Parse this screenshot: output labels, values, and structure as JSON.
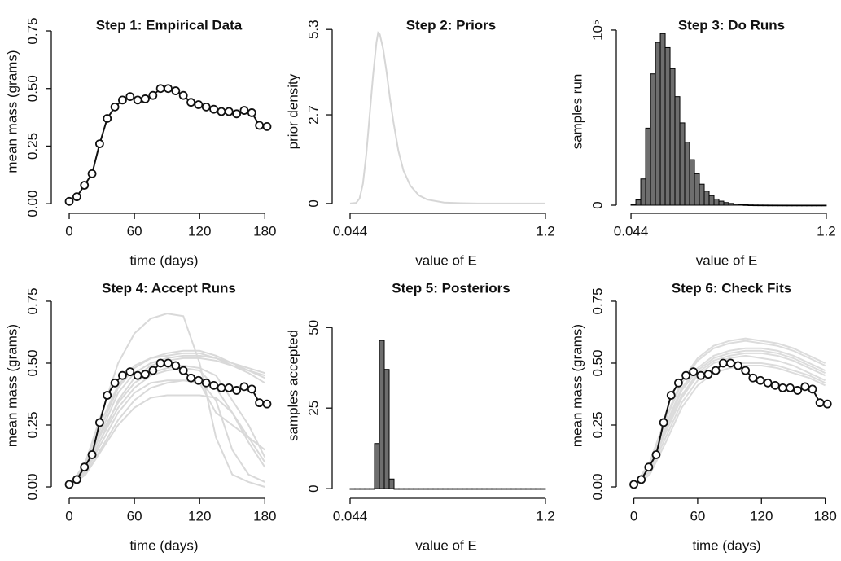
{
  "chart_data": [
    {
      "type": "line",
      "title": "Step 1: Empirical Data",
      "xlabel": "time (days)",
      "ylabel": "mean mass (grams)",
      "xlim": [
        -16.5,
        191
      ],
      "ylim": [
        -0.042,
        0.842
      ],
      "xticks": [
        0,
        60,
        120,
        180
      ],
      "yticks": [
        {
          "value": 0,
          "label": "0.00"
        },
        {
          "value": 0.25,
          "label": "0.25"
        },
        {
          "value": 0.5,
          "label": "0.50"
        },
        {
          "value": 0.75,
          "label": "0.75"
        }
      ],
      "series": [
        {
          "color": "#111111",
          "marker": "circle",
          "x": [
            0,
            7,
            14,
            21,
            28,
            35,
            42,
            49,
            56,
            63,
            70,
            77,
            84,
            91,
            98,
            105,
            112,
            119,
            126,
            133,
            140,
            147,
            154,
            161,
            168,
            175,
            182
          ],
          "values": [
            0.01,
            0.03,
            0.08,
            0.13,
            0.26,
            0.37,
            0.42,
            0.45,
            0.465,
            0.45,
            0.455,
            0.47,
            0.5,
            0.5,
            0.49,
            0.47,
            0.44,
            0.43,
            0.42,
            0.41,
            0.4,
            0.4,
            0.39,
            0.405,
            0.395,
            0.34,
            0.335
          ]
        }
      ]
    },
    {
      "type": "line",
      "title": "Step 2: Priors",
      "xlabel": "value of E",
      "ylabel": "prior density",
      "xlim": [
        -0.062,
        1.287
      ],
      "ylim": [
        -0.3,
        5.9
      ],
      "xticks": [
        0.044,
        1.2
      ],
      "yticks": [
        0,
        2.7,
        5.3
      ],
      "series": [
        {
          "color": "#d6d6d6",
          "x": [
            0.044,
            0.08,
            0.1,
            0.12,
            0.14,
            0.16,
            0.18,
            0.2,
            0.21,
            0.22,
            0.24,
            0.26,
            0.28,
            0.3,
            0.33,
            0.36,
            0.4,
            0.45,
            0.5,
            0.6,
            0.7,
            0.8,
            1.0,
            1.2
          ],
          "values": [
            0,
            0.02,
            0.15,
            0.6,
            1.5,
            2.7,
            3.9,
            4.9,
            5.2,
            5.15,
            4.7,
            4.0,
            3.2,
            2.5,
            1.6,
            1.0,
            0.55,
            0.25,
            0.12,
            0.03,
            0.01,
            0,
            0,
            0
          ]
        }
      ]
    },
    {
      "type": "histogram",
      "title": "Step 3: Do Runs",
      "xlabel": "value of E",
      "ylabel": "samples run",
      "xlim": [
        -0.043,
        1.263
      ],
      "ylim": [
        -4650,
        111600
      ],
      "xticks": [
        0.044,
        1.2
      ],
      "yticks": [
        0,
        {
          "value": 100000,
          "label": "10⁵"
        }
      ],
      "color": "#6e6e6e",
      "edgecolor": "#000000",
      "bins": [
        0.044,
        0.0729,
        0.1018,
        0.1307,
        0.1596,
        0.1885,
        0.2174,
        0.2463,
        0.2752,
        0.3041,
        0.333,
        0.3619,
        0.3908,
        0.4197,
        0.4486,
        0.4775,
        0.5064,
        0.5353,
        0.5642,
        0.5931,
        0.622,
        0.6509,
        0.6798,
        0.7087,
        0.7376,
        0.7665,
        0.7954,
        0.8243,
        0.8532,
        0.8821,
        0.911,
        0.9399,
        0.9688,
        0.9977,
        1.0266,
        1.0555,
        1.0844,
        1.1133,
        1.1422,
        1.1711,
        1.2
      ],
      "counts": [
        500,
        3000,
        15000,
        44000,
        75000,
        93000,
        98000,
        90000,
        78000,
        62000,
        47000,
        36000,
        26000,
        18000,
        12000,
        8000,
        5500,
        3500,
        2300,
        1500,
        1000,
        600,
        400,
        250,
        150,
        100,
        80,
        60,
        40,
        30,
        20,
        15,
        10,
        8,
        5,
        4,
        3,
        2,
        1,
        1
      ]
    },
    {
      "type": "line",
      "title": "Step 4: Accept Runs",
      "xlabel": "time (days)",
      "ylabel": "mean mass (grams)",
      "xlim": [
        -16.5,
        191
      ],
      "ylim": [
        -0.046,
        0.865
      ],
      "xticks": [
        0,
        60,
        120,
        180
      ],
      "yticks": [
        {
          "value": 0,
          "label": "0.00"
        },
        {
          "value": 0.25,
          "label": "0.25"
        },
        {
          "value": 0.5,
          "label": "0.50"
        },
        {
          "value": 0.75,
          "label": "0.75"
        }
      ],
      "series": [
        {
          "color": "#d9d9d9",
          "x": [
            0,
            15,
            30,
            45,
            60,
            75,
            90,
            105,
            120,
            135,
            150,
            165,
            180
          ],
          "values": [
            0,
            0.1,
            0.3,
            0.5,
            0.62,
            0.68,
            0.7,
            0.69,
            0.5,
            0.2,
            0.05,
            0.02,
            0
          ]
        },
        {
          "color": "#d9d9d9",
          "x": [
            0,
            15,
            30,
            45,
            60,
            75,
            90,
            105,
            120,
            135,
            150,
            165,
            180
          ],
          "values": [
            0,
            0.08,
            0.25,
            0.4,
            0.48,
            0.52,
            0.54,
            0.55,
            0.55,
            0.53,
            0.5,
            0.47,
            0.44
          ]
        },
        {
          "color": "#d9d9d9",
          "x": [
            0,
            15,
            30,
            45,
            60,
            75,
            90,
            105,
            120,
            135,
            150,
            165,
            180
          ],
          "values": [
            0,
            0.07,
            0.23,
            0.38,
            0.46,
            0.5,
            0.52,
            0.53,
            0.53,
            0.52,
            0.5,
            0.48,
            0.46
          ]
        },
        {
          "color": "#d9d9d9",
          "x": [
            0,
            15,
            30,
            45,
            60,
            75,
            90,
            105,
            120,
            135,
            150,
            165,
            180
          ],
          "values": [
            0,
            0.09,
            0.27,
            0.41,
            0.49,
            0.52,
            0.53,
            0.54,
            0.54,
            0.52,
            0.49,
            0.46,
            0.42
          ]
        },
        {
          "color": "#d9d9d9",
          "x": [
            0,
            15,
            30,
            45,
            60,
            75,
            90,
            105,
            120,
            135,
            150,
            165,
            180
          ],
          "values": [
            0,
            0.06,
            0.2,
            0.35,
            0.44,
            0.49,
            0.51,
            0.52,
            0.52,
            0.51,
            0.49,
            0.47,
            0.45
          ]
        },
        {
          "color": "#d9d9d9",
          "x": [
            0,
            15,
            30,
            45,
            60,
            75,
            90,
            105,
            120,
            135,
            150,
            165,
            180
          ],
          "values": [
            0,
            0.05,
            0.15,
            0.25,
            0.32,
            0.36,
            0.37,
            0.37,
            0.37,
            0.36,
            0.3,
            0.2,
            0.1
          ]
        },
        {
          "color": "#d9d9d9",
          "x": [
            0,
            15,
            30,
            45,
            60,
            75,
            90,
            105,
            120,
            135,
            150,
            165,
            180
          ],
          "values": [
            0,
            0.06,
            0.18,
            0.3,
            0.38,
            0.42,
            0.43,
            0.43,
            0.42,
            0.3,
            0.25,
            0.2,
            0.15
          ]
        },
        {
          "color": "#d9d9d9",
          "x": [
            0,
            15,
            30,
            45,
            60,
            75,
            90,
            105,
            120,
            135,
            150,
            165,
            180
          ],
          "values": [
            0,
            0.05,
            0.16,
            0.27,
            0.35,
            0.4,
            0.42,
            0.43,
            0.43,
            0.35,
            0.15,
            0.05,
            0.02
          ]
        },
        {
          "color": "#d9d9d9",
          "x": [
            0,
            15,
            30,
            45,
            60,
            75,
            90,
            105,
            120,
            135,
            150,
            165,
            180
          ],
          "values": [
            0,
            0.07,
            0.2,
            0.32,
            0.4,
            0.45,
            0.47,
            0.48,
            0.47,
            0.4,
            0.3,
            0.18,
            0.08
          ]
        },
        {
          "color": "#d9d9d9",
          "x": [
            0,
            15,
            30,
            45,
            60,
            75,
            90,
            105,
            120,
            135,
            150,
            165,
            180
          ],
          "values": [
            0,
            0.08,
            0.22,
            0.34,
            0.42,
            0.46,
            0.48,
            0.49,
            0.48,
            0.45,
            0.35,
            0.25,
            0.12
          ]
        },
        {
          "color": "#111111",
          "marker": "circle",
          "x": [
            0,
            7,
            14,
            21,
            28,
            35,
            42,
            49,
            56,
            63,
            70,
            77,
            84,
            91,
            98,
            105,
            112,
            119,
            126,
            133,
            140,
            147,
            154,
            161,
            168,
            175,
            182
          ],
          "values": [
            0.01,
            0.03,
            0.08,
            0.13,
            0.26,
            0.37,
            0.42,
            0.45,
            0.465,
            0.45,
            0.455,
            0.47,
            0.5,
            0.5,
            0.49,
            0.47,
            0.44,
            0.43,
            0.42,
            0.41,
            0.4,
            0.4,
            0.39,
            0.405,
            0.395,
            0.34,
            0.335
          ]
        }
      ]
    },
    {
      "type": "histogram",
      "title": "Step 5: Posteriors",
      "xlabel": "value of E",
      "ylabel": "samples accepted",
      "xlim": [
        -0.062,
        1.287
      ],
      "ylim": [
        -3,
        67
      ],
      "xticks": [
        0.044,
        1.2
      ],
      "yticks": [
        0,
        25,
        50
      ],
      "color": "#6e6e6e",
      "edgecolor": "#000000",
      "bins": [
        0.044,
        0.0729,
        0.1018,
        0.1307,
        0.1596,
        0.1885,
        0.2174,
        0.2463,
        0.2752,
        0.3041,
        0.333,
        0.3619,
        0.3908,
        0.4197,
        0.4486,
        0.4775,
        0.5064,
        0.5353,
        0.5642,
        0.5931,
        0.622,
        0.6509,
        0.6798,
        0.7087,
        0.7376,
        0.7665,
        0.7954,
        0.8243,
        0.8532,
        0.8821,
        0.911,
        0.9399,
        0.9688,
        0.9977,
        1.0266,
        1.0555,
        1.0844,
        1.1133,
        1.1422,
        1.1711,
        1.2
      ],
      "counts": [
        0,
        0,
        0,
        0,
        0,
        14,
        46,
        37,
        3,
        0,
        0,
        0,
        0,
        0,
        0,
        0,
        0,
        0,
        0,
        0,
        0,
        0,
        0,
        0,
        0,
        0,
        0,
        0,
        0,
        0,
        0,
        0,
        0,
        0,
        0,
        0,
        0,
        0,
        0,
        0
      ]
    },
    {
      "type": "line",
      "title": "Step 6: Check Fits",
      "xlabel": "time (days)",
      "ylabel": "mean mass (grams)",
      "xlim": [
        -16.5,
        191
      ],
      "ylim": [
        -0.046,
        0.865
      ],
      "xticks": [
        0,
        60,
        120,
        180
      ],
      "yticks": [
        {
          "value": 0,
          "label": "0.00"
        },
        {
          "value": 0.25,
          "label": "0.25"
        },
        {
          "value": 0.5,
          "label": "0.50"
        },
        {
          "value": 0.75,
          "label": "0.75"
        }
      ],
      "series": [
        {
          "color": "#dcdcdc",
          "x": [
            0,
            15,
            30,
            45,
            60,
            75,
            90,
            105,
            120,
            135,
            150,
            165,
            180
          ],
          "values": [
            0,
            0.08,
            0.25,
            0.4,
            0.48,
            0.53,
            0.55,
            0.56,
            0.56,
            0.55,
            0.53,
            0.5,
            0.47
          ]
        },
        {
          "color": "#dcdcdc",
          "x": [
            0,
            15,
            30,
            45,
            60,
            75,
            90,
            105,
            120,
            135,
            150,
            165,
            180
          ],
          "values": [
            0,
            0.07,
            0.22,
            0.36,
            0.45,
            0.5,
            0.52,
            0.53,
            0.52,
            0.51,
            0.49,
            0.46,
            0.43
          ]
        },
        {
          "color": "#dcdcdc",
          "x": [
            0,
            15,
            30,
            45,
            60,
            75,
            90,
            105,
            120,
            135,
            150,
            165,
            180
          ],
          "values": [
            0,
            0.09,
            0.27,
            0.42,
            0.51,
            0.56,
            0.58,
            0.59,
            0.58,
            0.57,
            0.55,
            0.52,
            0.49
          ]
        },
        {
          "color": "#dcdcdc",
          "x": [
            0,
            15,
            30,
            45,
            60,
            75,
            90,
            105,
            120,
            135,
            150,
            165,
            180
          ],
          "values": [
            0,
            0.06,
            0.2,
            0.34,
            0.43,
            0.48,
            0.5,
            0.5,
            0.5,
            0.49,
            0.47,
            0.45,
            0.42
          ]
        },
        {
          "color": "#dcdcdc",
          "x": [
            0,
            15,
            30,
            45,
            60,
            75,
            90,
            105,
            120,
            135,
            150,
            165,
            180
          ],
          "values": [
            0,
            0.08,
            0.24,
            0.39,
            0.47,
            0.52,
            0.54,
            0.55,
            0.55,
            0.54,
            0.52,
            0.49,
            0.46
          ]
        },
        {
          "color": "#dcdcdc",
          "x": [
            0,
            15,
            30,
            45,
            60,
            75,
            90,
            105,
            120,
            135,
            150,
            165,
            180
          ],
          "values": [
            0,
            0.1,
            0.28,
            0.43,
            0.52,
            0.57,
            0.59,
            0.6,
            0.59,
            0.58,
            0.56,
            0.53,
            0.5
          ]
        },
        {
          "color": "#dcdcdc",
          "x": [
            0,
            15,
            30,
            45,
            60,
            75,
            90,
            105,
            120,
            135,
            150,
            165,
            180
          ],
          "values": [
            0,
            0.07,
            0.23,
            0.37,
            0.46,
            0.51,
            0.53,
            0.54,
            0.54,
            0.53,
            0.51,
            0.48,
            0.45
          ]
        },
        {
          "color": "#dcdcdc",
          "x": [
            0,
            15,
            30,
            45,
            60,
            75,
            90,
            105,
            120,
            135,
            150,
            165,
            180
          ],
          "values": [
            0,
            0.05,
            0.18,
            0.32,
            0.41,
            0.46,
            0.48,
            0.49,
            0.49,
            0.48,
            0.46,
            0.44,
            0.41
          ]
        },
        {
          "color": "#111111",
          "marker": "circle",
          "x": [
            0,
            7,
            14,
            21,
            28,
            35,
            42,
            49,
            56,
            63,
            70,
            77,
            84,
            91,
            98,
            105,
            112,
            119,
            126,
            133,
            140,
            147,
            154,
            161,
            168,
            175,
            182
          ],
          "values": [
            0.01,
            0.03,
            0.08,
            0.13,
            0.26,
            0.37,
            0.42,
            0.45,
            0.465,
            0.45,
            0.455,
            0.47,
            0.5,
            0.5,
            0.49,
            0.47,
            0.44,
            0.43,
            0.42,
            0.41,
            0.4,
            0.4,
            0.39,
            0.405,
            0.395,
            0.34,
            0.335
          ]
        }
      ]
    }
  ]
}
